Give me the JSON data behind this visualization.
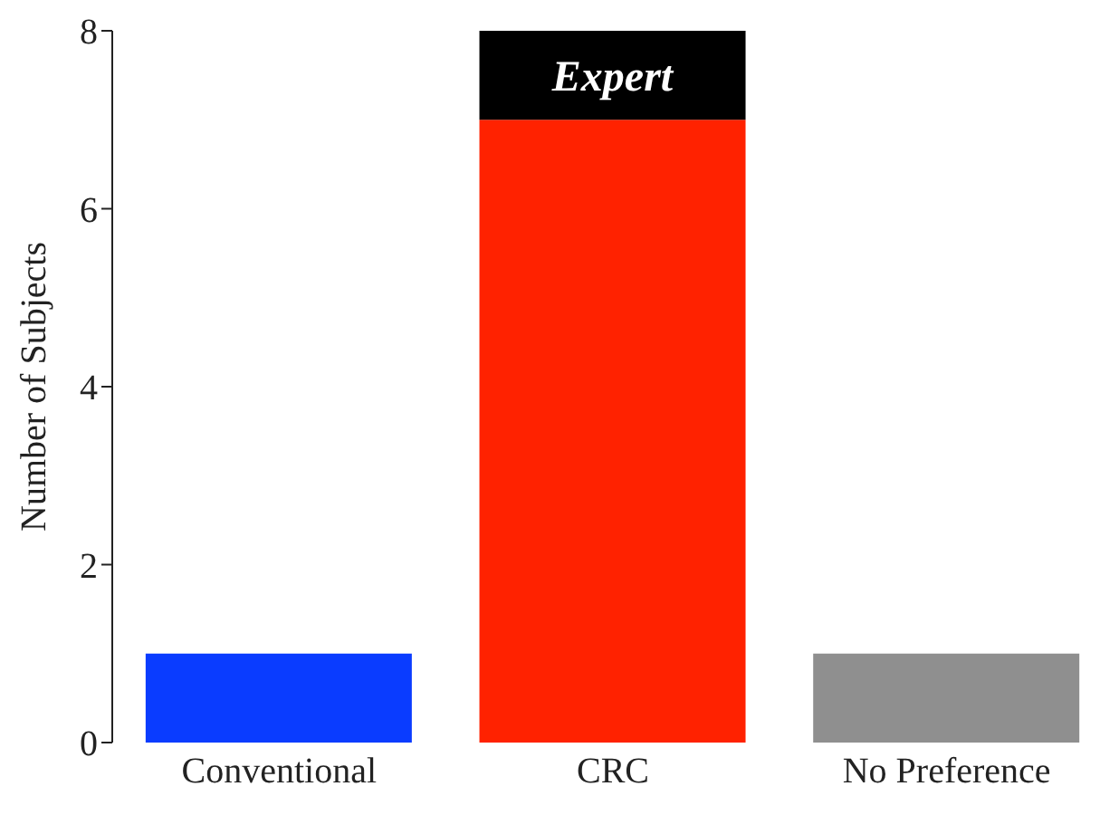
{
  "chart_data": {
    "type": "bar",
    "stacked": true,
    "ylabel": "Number of Subjects",
    "categories": [
      "Conventional",
      "CRC",
      "No Preference"
    ],
    "series": [
      {
        "colors": [
          "#0a3cff",
          "#ff2200",
          "#8f8f8f"
        ],
        "values": [
          1,
          7,
          1
        ]
      },
      {
        "name": "Expert",
        "color": "#000000",
        "values": [
          null,
          1,
          null
        ]
      }
    ],
    "ylim": [
      0,
      8
    ],
    "yticks": [
      0,
      2,
      4,
      6,
      8
    ],
    "grid": false,
    "legend": false
  }
}
